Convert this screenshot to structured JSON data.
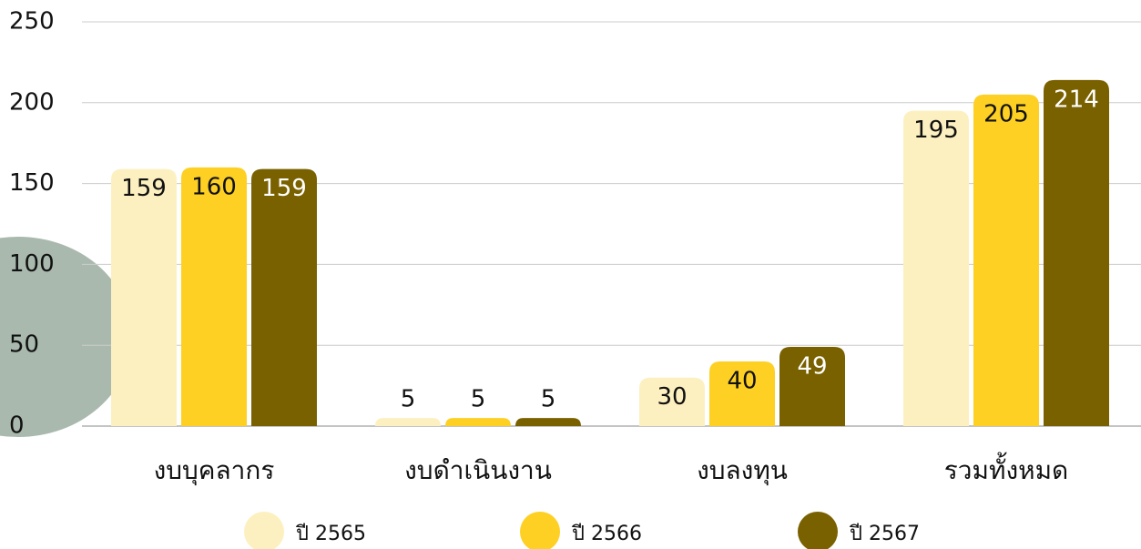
{
  "chart_data": {
    "type": "bar",
    "categories": [
      "งบบุคลากร",
      "งบดำเนินงาน",
      "งบลงทุน",
      "รวมทั้งหมด"
    ],
    "series": [
      {
        "name": "ปี 2565",
        "color": "#fdf0c0",
        "label_color": "#111111",
        "values": [
          159,
          5,
          30,
          195
        ]
      },
      {
        "name": "ปี 2566",
        "color": "#fdd023",
        "label_color": "#111111",
        "values": [
          160,
          5,
          40,
          205
        ]
      },
      {
        "name": "ปี 2567",
        "color": "#7a6100",
        "label_color": "#ffffff",
        "values": [
          159,
          5,
          49,
          214
        ]
      }
    ],
    "ylim": [
      0,
      250
    ],
    "yticks": [
      0,
      50,
      100,
      150,
      200,
      250
    ],
    "grid": true,
    "legend": "bottom"
  }
}
